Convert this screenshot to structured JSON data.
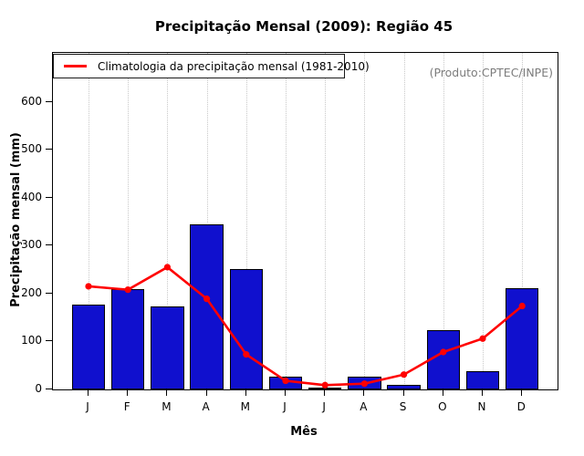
{
  "title": "Precipitação Mensal (2009): Região 45",
  "annotation": {
    "text": "(Produto:CPTEC/INPE)",
    "color": "#7c7c7c"
  },
  "legend": {
    "label": "Climatologia da precipitação mensal (1981-2010)",
    "line_color": "#ff0000"
  },
  "chart_data": {
    "type": "bar",
    "title": "Precipitação Mensal (2009): Região 45",
    "xlabel": "Mês",
    "ylabel": "Precipitação mensal (mm)",
    "categories": [
      "J",
      "F",
      "M",
      "A",
      "M",
      "J",
      "J",
      "A",
      "S",
      "O",
      "N",
      "D"
    ],
    "series": [
      {
        "name": "Precipitação mensal 2009",
        "type": "bar",
        "color": "#1010ce",
        "values": [
          177,
          210,
          173,
          345,
          252,
          27,
          4,
          26,
          9,
          123,
          38,
          212
        ]
      },
      {
        "name": "Climatologia da precipitação mensal (1981-2010)",
        "type": "line",
        "color": "#ff0000",
        "values": [
          215,
          208,
          255,
          189,
          73,
          18,
          9,
          12,
          31,
          78,
          106,
          174
        ]
      }
    ],
    "ylim": [
      0,
      600
    ],
    "yticks": [
      0,
      100,
      200,
      300,
      400,
      500,
      600
    ],
    "grid": "vertical-dotted",
    "legend_position": "top-left-inside"
  }
}
